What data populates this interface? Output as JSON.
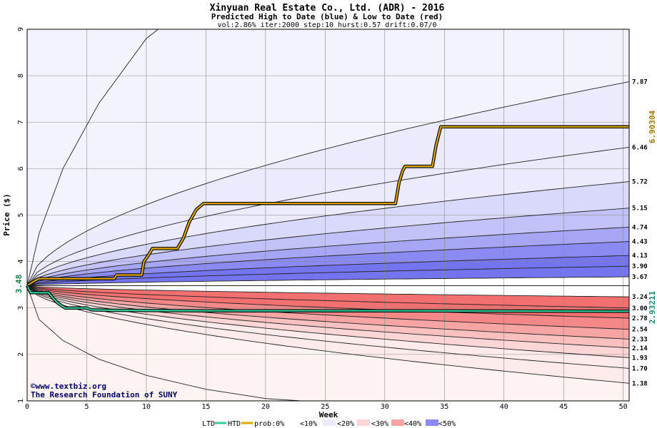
{
  "title": "Xinyuan Real Estate Co., Ltd. (ADR) - 2016",
  "subtitle": "Predicted High to Date (blue) &  Low to Date (red)",
  "params": "vol:2.86% iter:2000 step:10 hurst:0.57 drift:0.07/0",
  "credit": {
    "line1": "©www.textbiz.org",
    "line2": "The Research Foundation of SUNY"
  },
  "legend": {
    "ltd": "LTD",
    "htd": "HTD",
    "prob": "prob:0%",
    "items": [
      "<10%",
      "<20%",
      "<30%",
      "<40%",
      "<50%"
    ]
  },
  "colors": {
    "background_upper": "#f3f3fe",
    "background_lower": "#fef3f3",
    "htd_line": "#e0a800",
    "ltd_line": "#33cc99",
    "blue_bands": [
      "#ebebfd",
      "#d9d9fb",
      "#c2c2f8",
      "#a6a6f5",
      "#8a8af2",
      "#7474ef"
    ],
    "red_bands": [
      "#fdeaea",
      "#fcd6d6",
      "#fac0c0",
      "#f7a4a4",
      "#f48888",
      "#f27070"
    ]
  },
  "chart_data": {
    "type": "line",
    "xlabel": "Week",
    "ylabel": "Price ($)",
    "xlim": [
      0,
      50.5
    ],
    "ylim": [
      1,
      9
    ],
    "xticks": [
      0,
      5,
      10,
      15,
      20,
      25,
      30,
      35,
      40,
      45,
      50
    ],
    "yticks": [
      1,
      2,
      3,
      4,
      5,
      6,
      7,
      8,
      9
    ],
    "start_price": "3.48",
    "right_labels": [
      "7.87",
      "6.46",
      "5.72",
      "5.15",
      "4.74",
      "4.43",
      "4.13",
      "3.90",
      "3.67",
      "3.24",
      "3.00",
      "2.78",
      "2.54",
      "2.33",
      "2.14",
      "1.93",
      "1.70",
      "1.38"
    ],
    "htd_final_label": "6.90304",
    "ltd_final_label": "2.93211",
    "upper_percentiles": [
      {
        "start": 3.48,
        "end": 3.67
      },
      {
        "start": 3.48,
        "end": 3.9
      },
      {
        "start": 3.48,
        "end": 4.13
      },
      {
        "start": 3.48,
        "end": 4.43
      },
      {
        "start": 3.48,
        "end": 4.74
      },
      {
        "start": 3.48,
        "end": 5.15
      },
      {
        "start": 3.48,
        "end": 5.72
      },
      {
        "start": 3.48,
        "end": 6.46
      },
      {
        "start": 3.48,
        "end": 7.87
      }
    ],
    "lower_percentiles": [
      {
        "start": 3.48,
        "end": 3.24
      },
      {
        "start": 3.48,
        "end": 3.0
      },
      {
        "start": 3.48,
        "end": 2.78
      },
      {
        "start": 3.48,
        "end": 2.54
      },
      {
        "start": 3.48,
        "end": 2.33
      },
      {
        "start": 3.48,
        "end": 2.14
      },
      {
        "start": 3.48,
        "end": 1.93
      },
      {
        "start": 3.48,
        "end": 1.7
      },
      {
        "start": 3.48,
        "end": 1.38
      }
    ],
    "outer_upper": [
      [
        0,
        3.48
      ],
      [
        1,
        4.6
      ],
      [
        3,
        6.0
      ],
      [
        6,
        7.4
      ],
      [
        10,
        8.8
      ],
      [
        11,
        9.0
      ]
    ],
    "outer_lower": [
      [
        0,
        3.48
      ],
      [
        1,
        2.75
      ],
      [
        3,
        2.3
      ],
      [
        6,
        1.9
      ],
      [
        10,
        1.55
      ],
      [
        15,
        1.25
      ],
      [
        20,
        1.05
      ],
      [
        23,
        1.0
      ]
    ],
    "series": [
      {
        "name": "HTD",
        "points": [
          [
            0,
            3.48
          ],
          [
            0.6,
            3.58
          ],
          [
            1.0,
            3.63
          ],
          [
            7.3,
            3.63
          ],
          [
            7.5,
            3.71
          ],
          [
            9.6,
            3.71
          ],
          [
            9.8,
            4.0
          ],
          [
            10.2,
            4.15
          ],
          [
            10.5,
            4.28
          ],
          [
            12.6,
            4.28
          ],
          [
            13.1,
            4.5
          ],
          [
            13.6,
            4.85
          ],
          [
            14.2,
            5.12
          ],
          [
            14.8,
            5.25
          ],
          [
            30.9,
            5.25
          ],
          [
            31.2,
            5.7
          ],
          [
            31.5,
            5.95
          ],
          [
            31.7,
            6.05
          ],
          [
            34.0,
            6.05
          ],
          [
            34.3,
            6.5
          ],
          [
            34.7,
            6.9
          ],
          [
            50.5,
            6.9
          ]
        ]
      },
      {
        "name": "LTD",
        "points": [
          [
            0,
            3.48
          ],
          [
            0.3,
            3.33
          ],
          [
            1.8,
            3.33
          ],
          [
            2.2,
            3.2
          ],
          [
            2.6,
            3.1
          ],
          [
            3.2,
            3.0
          ],
          [
            5.0,
            3.0
          ],
          [
            5.4,
            2.96
          ],
          [
            7.0,
            2.95
          ],
          [
            15.0,
            2.94
          ],
          [
            30.0,
            2.94
          ],
          [
            50.5,
            2.93
          ]
        ]
      }
    ]
  }
}
